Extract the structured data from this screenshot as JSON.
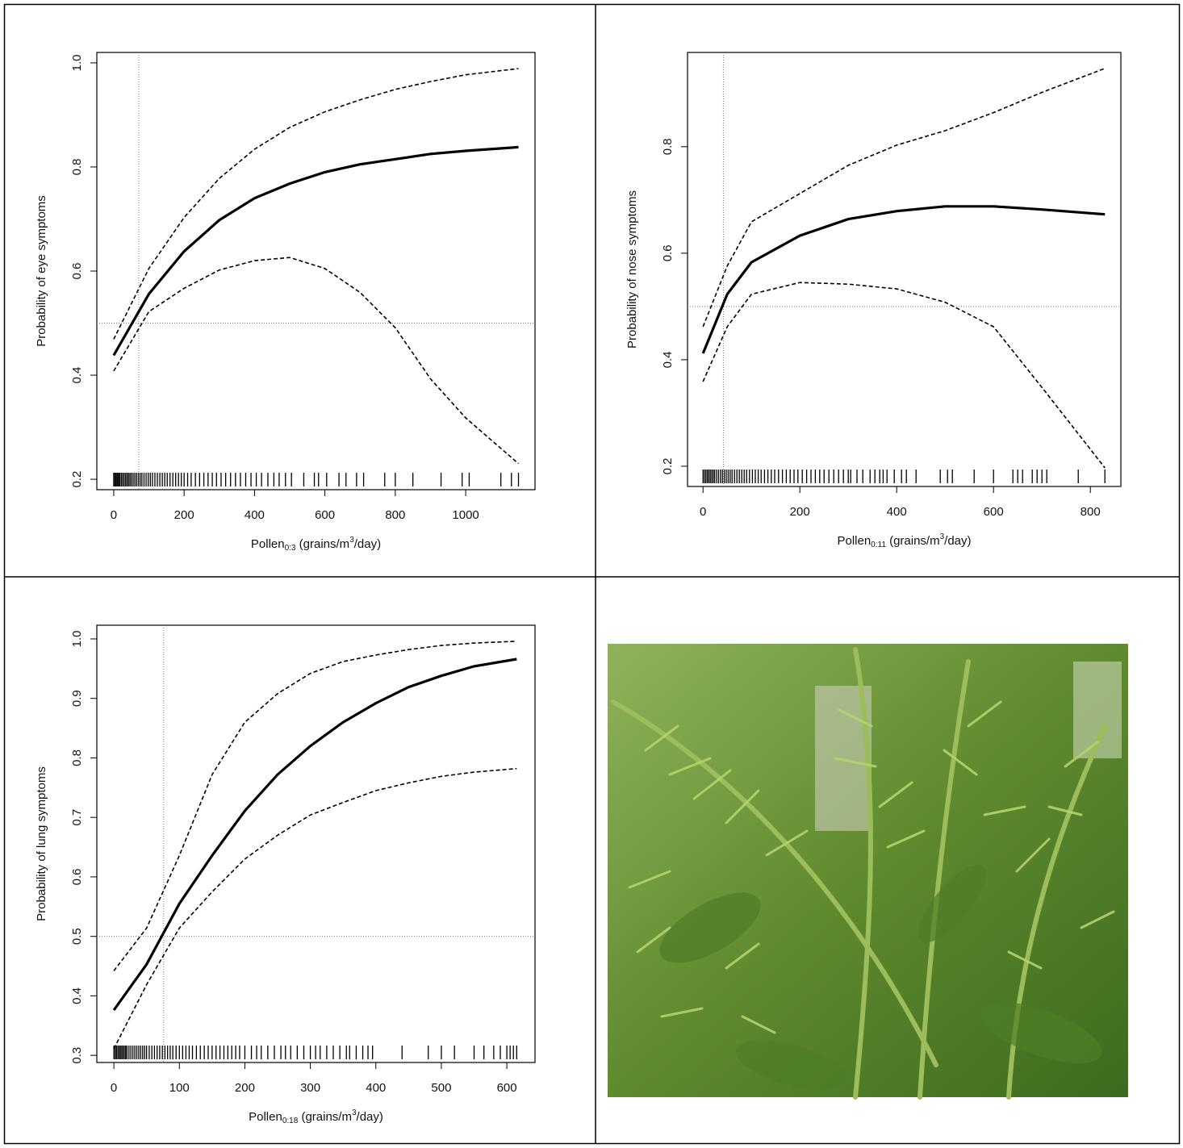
{
  "chart_data": [
    {
      "type": "line",
      "y_label": "Probability of eye symptoms",
      "x_label": {
        "base": "Pollen",
        "sub": "0:3",
        "mid": " (grains/m",
        "sup": "3",
        "end": "/day)"
      },
      "x": [
        0,
        100,
        200,
        300,
        400,
        500,
        600,
        700,
        800,
        900,
        1000,
        1150
      ],
      "series": [
        {
          "color": "#000000",
          "style": "solid",
          "values": [
            0.438,
            0.556,
            0.638,
            0.698,
            0.74,
            0.768,
            0.79,
            0.805,
            0.815,
            0.825,
            0.831,
            0.838
          ]
        },
        {
          "color": "#000000",
          "style": "dashed",
          "values": [
            0.469,
            0.605,
            0.703,
            0.778,
            0.834,
            0.876,
            0.906,
            0.929,
            0.949,
            0.964,
            0.977,
            0.989
          ]
        },
        {
          "color": "#000000",
          "style": "dashed",
          "values": [
            0.408,
            0.522,
            0.567,
            0.602,
            0.62,
            0.626,
            0.605,
            0.559,
            0.491,
            0.393,
            0.318,
            0.23
          ]
        }
      ],
      "vline": 71,
      "hline": 0.5,
      "rug": [
        0,
        3,
        6,
        9,
        12,
        15,
        18,
        22,
        26,
        30,
        34,
        38,
        42,
        46,
        50,
        55,
        60,
        65,
        70,
        75,
        80,
        86,
        92,
        98,
        104,
        110,
        117,
        124,
        131,
        138,
        145,
        152,
        160,
        168,
        176,
        184,
        192,
        200,
        210,
        220,
        232,
        244,
        256,
        268,
        280,
        292,
        305,
        318,
        332,
        346,
        360,
        375,
        390,
        405,
        420,
        438,
        455,
        470,
        488,
        505,
        540,
        570,
        582,
        605,
        640,
        660,
        690,
        710,
        770,
        800,
        850,
        930,
        990,
        1010,
        1100,
        1130,
        1150
      ],
      "xlim": [
        -48,
        1197
      ],
      "ylim": [
        0.18,
        1.02
      ],
      "xticks": [
        0,
        200,
        400,
        600,
        800,
        1000
      ],
      "yticks": [
        0.2,
        0.4,
        0.6,
        0.8,
        {
          "value": 1,
          "label": "1.0"
        }
      ]
    },
    {
      "type": "line",
      "y_label": "Probability of nose symptoms",
      "x_label": {
        "base": "Pollen",
        "sub": "0:11",
        "mid": " (grains/m",
        "sup": "3",
        "end": "/day)"
      },
      "x": [
        0,
        50,
        100,
        200,
        300,
        400,
        500,
        600,
        700,
        830
      ],
      "series": [
        {
          "color": "#000000",
          "style": "solid",
          "values": [
            0.412,
            0.523,
            0.583,
            0.633,
            0.664,
            0.679,
            0.688,
            0.688,
            0.682,
            0.673
          ]
        },
        {
          "color": "#000000",
          "style": "dashed",
          "values": [
            0.462,
            0.576,
            0.659,
            0.712,
            0.765,
            0.803,
            0.83,
            0.864,
            0.902,
            0.947
          ]
        },
        {
          "color": "#000000",
          "style": "dashed",
          "values": [
            0.359,
            0.462,
            0.523,
            0.545,
            0.542,
            0.533,
            0.508,
            0.462,
            0.348,
            0.197
          ]
        }
      ],
      "vline": 42,
      "hline": 0.5,
      "rug": [
        0,
        3,
        6,
        9,
        12,
        15,
        18,
        21,
        24,
        28,
        32,
        36,
        40,
        44,
        48,
        52,
        56,
        60,
        65,
        70,
        75,
        80,
        85,
        90,
        96,
        102,
        108,
        114,
        120,
        127,
        134,
        141,
        148,
        156,
        164,
        172,
        180,
        188,
        196,
        205,
        214,
        223,
        232,
        241,
        250,
        260,
        270,
        280,
        290,
        300,
        305,
        318,
        330,
        345,
        355,
        365,
        372,
        380,
        395,
        410,
        420,
        440,
        490,
        505,
        515,
        560,
        600,
        640,
        650,
        660,
        680,
        690,
        700,
        710,
        775,
        830
      ],
      "xlim": [
        -32,
        863
      ],
      "ylim": [
        0.162,
        0.977
      ],
      "xticks": [
        0,
        200,
        400,
        600,
        800
      ],
      "yticks": [
        0.2,
        0.4,
        0.6,
        0.8
      ]
    },
    {
      "type": "line",
      "y_label": "Probability of lung symptoms",
      "x_label": {
        "base": "Pollen",
        "sub": "0:18",
        "mid": " (grains/m",
        "sup": "3",
        "end": "/day)"
      },
      "x": [
        0,
        50,
        100,
        150,
        200,
        250,
        300,
        350,
        400,
        450,
        500,
        550,
        615
      ],
      "series": [
        {
          "color": "#000000",
          "style": "solid",
          "values": [
            0.376,
            0.453,
            0.555,
            0.636,
            0.711,
            0.772,
            0.82,
            0.86,
            0.892,
            0.919,
            0.938,
            0.954,
            0.966
          ]
        },
        {
          "color": "#000000",
          "style": "dashed",
          "values": [
            0.442,
            0.514,
            0.636,
            0.772,
            0.86,
            0.908,
            0.942,
            0.962,
            0.973,
            0.982,
            0.989,
            0.993,
            0.996
          ]
        },
        {
          "color": "#000000",
          "style": "dashed",
          "values": [
            0.311,
            0.419,
            0.514,
            0.575,
            0.63,
            0.67,
            0.704,
            0.725,
            0.745,
            0.758,
            0.769,
            0.776,
            0.782
          ]
        }
      ],
      "vline": 76,
      "hline": 0.5,
      "rug": [
        0,
        2,
        4,
        6,
        8,
        10,
        12,
        14,
        16,
        18,
        20,
        23,
        26,
        29,
        32,
        35,
        38,
        41,
        44,
        47,
        50,
        54,
        58,
        62,
        66,
        70,
        74,
        78,
        82,
        86,
        90,
        95,
        100,
        105,
        110,
        115,
        120,
        126,
        132,
        138,
        144,
        150,
        156,
        162,
        168,
        174,
        180,
        186,
        192,
        200,
        210,
        218,
        225,
        235,
        245,
        255,
        262,
        270,
        280,
        290,
        300,
        308,
        315,
        325,
        335,
        345,
        355,
        360,
        370,
        380,
        388,
        395,
        440,
        480,
        500,
        520,
        550,
        565,
        580,
        590,
        600,
        605,
        610,
        615
      ],
      "xlim": [
        -26,
        643
      ],
      "ylim": [
        0.288,
        1.023
      ],
      "xticks": [
        0,
        100,
        200,
        300,
        400,
        500,
        600
      ],
      "yticks": [
        0.3,
        0.4,
        0.5,
        0.6,
        0.7,
        0.8,
        0.9,
        {
          "value": 1,
          "label": "1.0"
        }
      ]
    }
  ]
}
